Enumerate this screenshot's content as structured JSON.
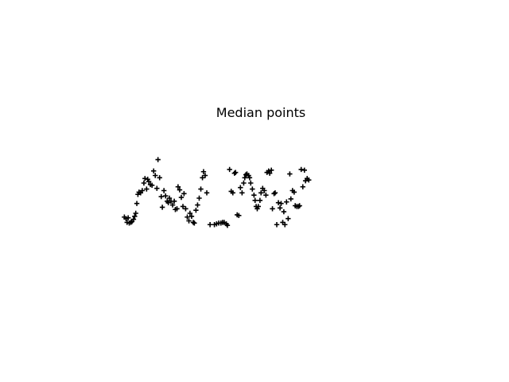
{
  "chart_data": {
    "type": "scatter",
    "title": "Median points",
    "xlabel": "",
    "ylabel": "",
    "marker": "+",
    "marker_color": "#000000",
    "axes_visible": false,
    "grid": false,
    "xlim": [
      0,
      1
    ],
    "ylim": [
      0,
      1
    ],
    "series": [
      {
        "points": [
          [
            0.004,
            0.15
          ],
          [
            0.01,
            0.13
          ],
          [
            0.014,
            0.08
          ],
          [
            0.018,
            0.14
          ],
          [
            0.022,
            0.07
          ],
          [
            0.028,
            0.08
          ],
          [
            0.032,
            0.09
          ],
          [
            0.038,
            0.12
          ],
          [
            0.042,
            0.16
          ],
          [
            0.046,
            0.2
          ],
          [
            0.05,
            0.33
          ],
          [
            0.054,
            0.45
          ],
          [
            0.058,
            0.48
          ],
          [
            0.064,
            0.47
          ],
          [
            0.07,
            0.5
          ],
          [
            0.076,
            0.6
          ],
          [
            0.08,
            0.66
          ],
          [
            0.086,
            0.52
          ],
          [
            0.09,
            0.65
          ],
          [
            0.094,
            0.62
          ],
          [
            0.1,
            0.58
          ],
          [
            0.106,
            0.57
          ],
          [
            0.112,
            0.76
          ],
          [
            0.118,
            0.7
          ],
          [
            0.124,
            0.53
          ],
          [
            0.128,
            0.91
          ],
          [
            0.134,
            0.67
          ],
          [
            0.14,
            0.42
          ],
          [
            0.144,
            0.28
          ],
          [
            0.15,
            0.5
          ],
          [
            0.156,
            0.43
          ],
          [
            0.162,
            0.36
          ],
          [
            0.166,
            0.34
          ],
          [
            0.17,
            0.4
          ],
          [
            0.176,
            0.36
          ],
          [
            0.182,
            0.31
          ],
          [
            0.188,
            0.36
          ],
          [
            0.192,
            0.25
          ],
          [
            0.198,
            0.26
          ],
          [
            0.202,
            0.55
          ],
          [
            0.208,
            0.51
          ],
          [
            0.214,
            0.41
          ],
          [
            0.22,
            0.29
          ],
          [
            0.224,
            0.46
          ],
          [
            0.23,
            0.26
          ],
          [
            0.236,
            0.15
          ],
          [
            0.242,
            0.1
          ],
          [
            0.246,
            0.2
          ],
          [
            0.252,
            0.16
          ],
          [
            0.258,
            0.08
          ],
          [
            0.262,
            0.07
          ],
          [
            0.268,
            0.24
          ],
          [
            0.274,
            0.31
          ],
          [
            0.28,
            0.4
          ],
          [
            0.286,
            0.52
          ],
          [
            0.292,
            0.67
          ],
          [
            0.296,
            0.75
          ],
          [
            0.302,
            0.7
          ],
          [
            0.308,
            0.47
          ],
          [
            0.32,
            0.05
          ],
          [
            0.336,
            0.05
          ],
          [
            0.344,
            0.06
          ],
          [
            0.352,
            0.07
          ],
          [
            0.36,
            0.07
          ],
          [
            0.366,
            0.08
          ],
          [
            0.372,
            0.08
          ],
          [
            0.38,
            0.06
          ],
          [
            0.384,
            0.04
          ],
          [
            0.392,
            0.78
          ],
          [
            0.398,
            0.49
          ],
          [
            0.404,
            0.47
          ],
          [
            0.41,
            0.73
          ],
          [
            0.414,
            0.74
          ],
          [
            0.42,
            0.18
          ],
          [
            0.426,
            0.17
          ],
          [
            0.432,
            0.54
          ],
          [
            0.438,
            0.47
          ],
          [
            0.444,
            0.6
          ],
          [
            0.448,
            0.67
          ],
          [
            0.452,
            0.71
          ],
          [
            0.456,
            0.72
          ],
          [
            0.462,
            0.7
          ],
          [
            0.466,
            0.67
          ],
          [
            0.47,
            0.6
          ],
          [
            0.476,
            0.52
          ],
          [
            0.482,
            0.44
          ],
          [
            0.486,
            0.37
          ],
          [
            0.49,
            0.29
          ],
          [
            0.494,
            0.26
          ],
          [
            0.498,
            0.29
          ],
          [
            0.504,
            0.37
          ],
          [
            0.508,
            0.47
          ],
          [
            0.514,
            0.53
          ],
          [
            0.52,
            0.5
          ],
          [
            0.526,
            0.44
          ],
          [
            0.53,
            0.74
          ],
          [
            0.536,
            0.76
          ],
          [
            0.54,
            0.73
          ],
          [
            0.546,
            0.77
          ],
          [
            0.55,
            0.26
          ],
          [
            0.556,
            0.46
          ],
          [
            0.56,
            0.47
          ],
          [
            0.566,
            0.05
          ],
          [
            0.572,
            0.34
          ],
          [
            0.578,
            0.27
          ],
          [
            0.582,
            0.33
          ],
          [
            0.588,
            0.08
          ],
          [
            0.592,
            0.22
          ],
          [
            0.596,
            0.05
          ],
          [
            0.602,
            0.35
          ],
          [
            0.608,
            0.13
          ],
          [
            0.614,
            0.72
          ],
          [
            0.618,
            0.39
          ],
          [
            0.624,
            0.5
          ],
          [
            0.63,
            0.48
          ],
          [
            0.634,
            0.3
          ],
          [
            0.64,
            0.29
          ],
          [
            0.646,
            0.29
          ],
          [
            0.65,
            0.3
          ],
          [
            0.656,
            0.78
          ],
          [
            0.662,
            0.55
          ],
          [
            0.668,
            0.77
          ],
          [
            0.672,
            0.63
          ],
          [
            0.678,
            0.66
          ],
          [
            0.684,
            0.64
          ]
        ]
      }
    ]
  }
}
